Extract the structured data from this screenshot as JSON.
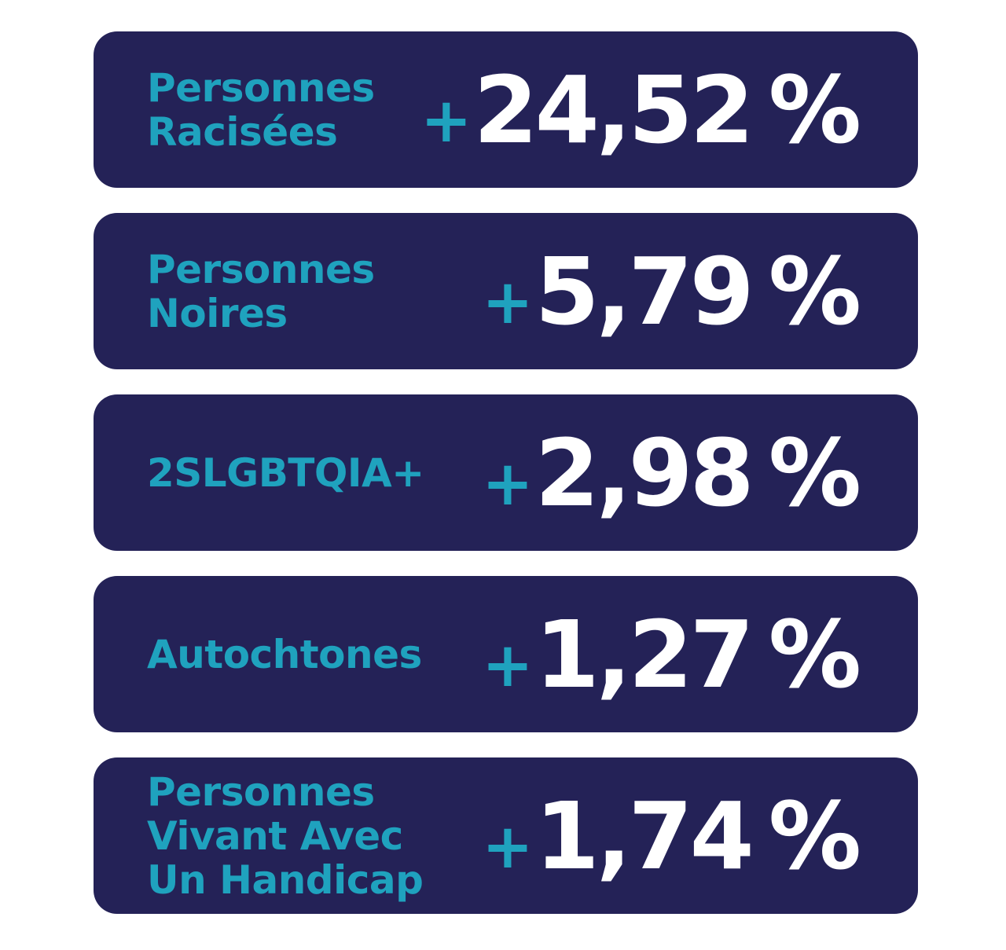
{
  "stats": [
    {
      "label": "Personnes\nRacisées",
      "sign": "+",
      "value": "24,52",
      "unit": "%"
    },
    {
      "label": "Personnes\nNoires",
      "sign": "+",
      "value": "5,79",
      "unit": "%"
    },
    {
      "label": "2SLGBTQIA+",
      "sign": "+",
      "value": "2,98",
      "unit": "%"
    },
    {
      "label": "Autochtones",
      "sign": "+",
      "value": "1,27",
      "unit": "%"
    },
    {
      "label": "Personnes\nVivant Avec\nUn Handicap",
      "sign": "+",
      "value": "1,74",
      "unit": "%"
    }
  ],
  "colors": {
    "card_background": "#242257",
    "label_accent": "#1fa2be",
    "value_text": "#ffffff",
    "page_background": "#ffffff"
  }
}
